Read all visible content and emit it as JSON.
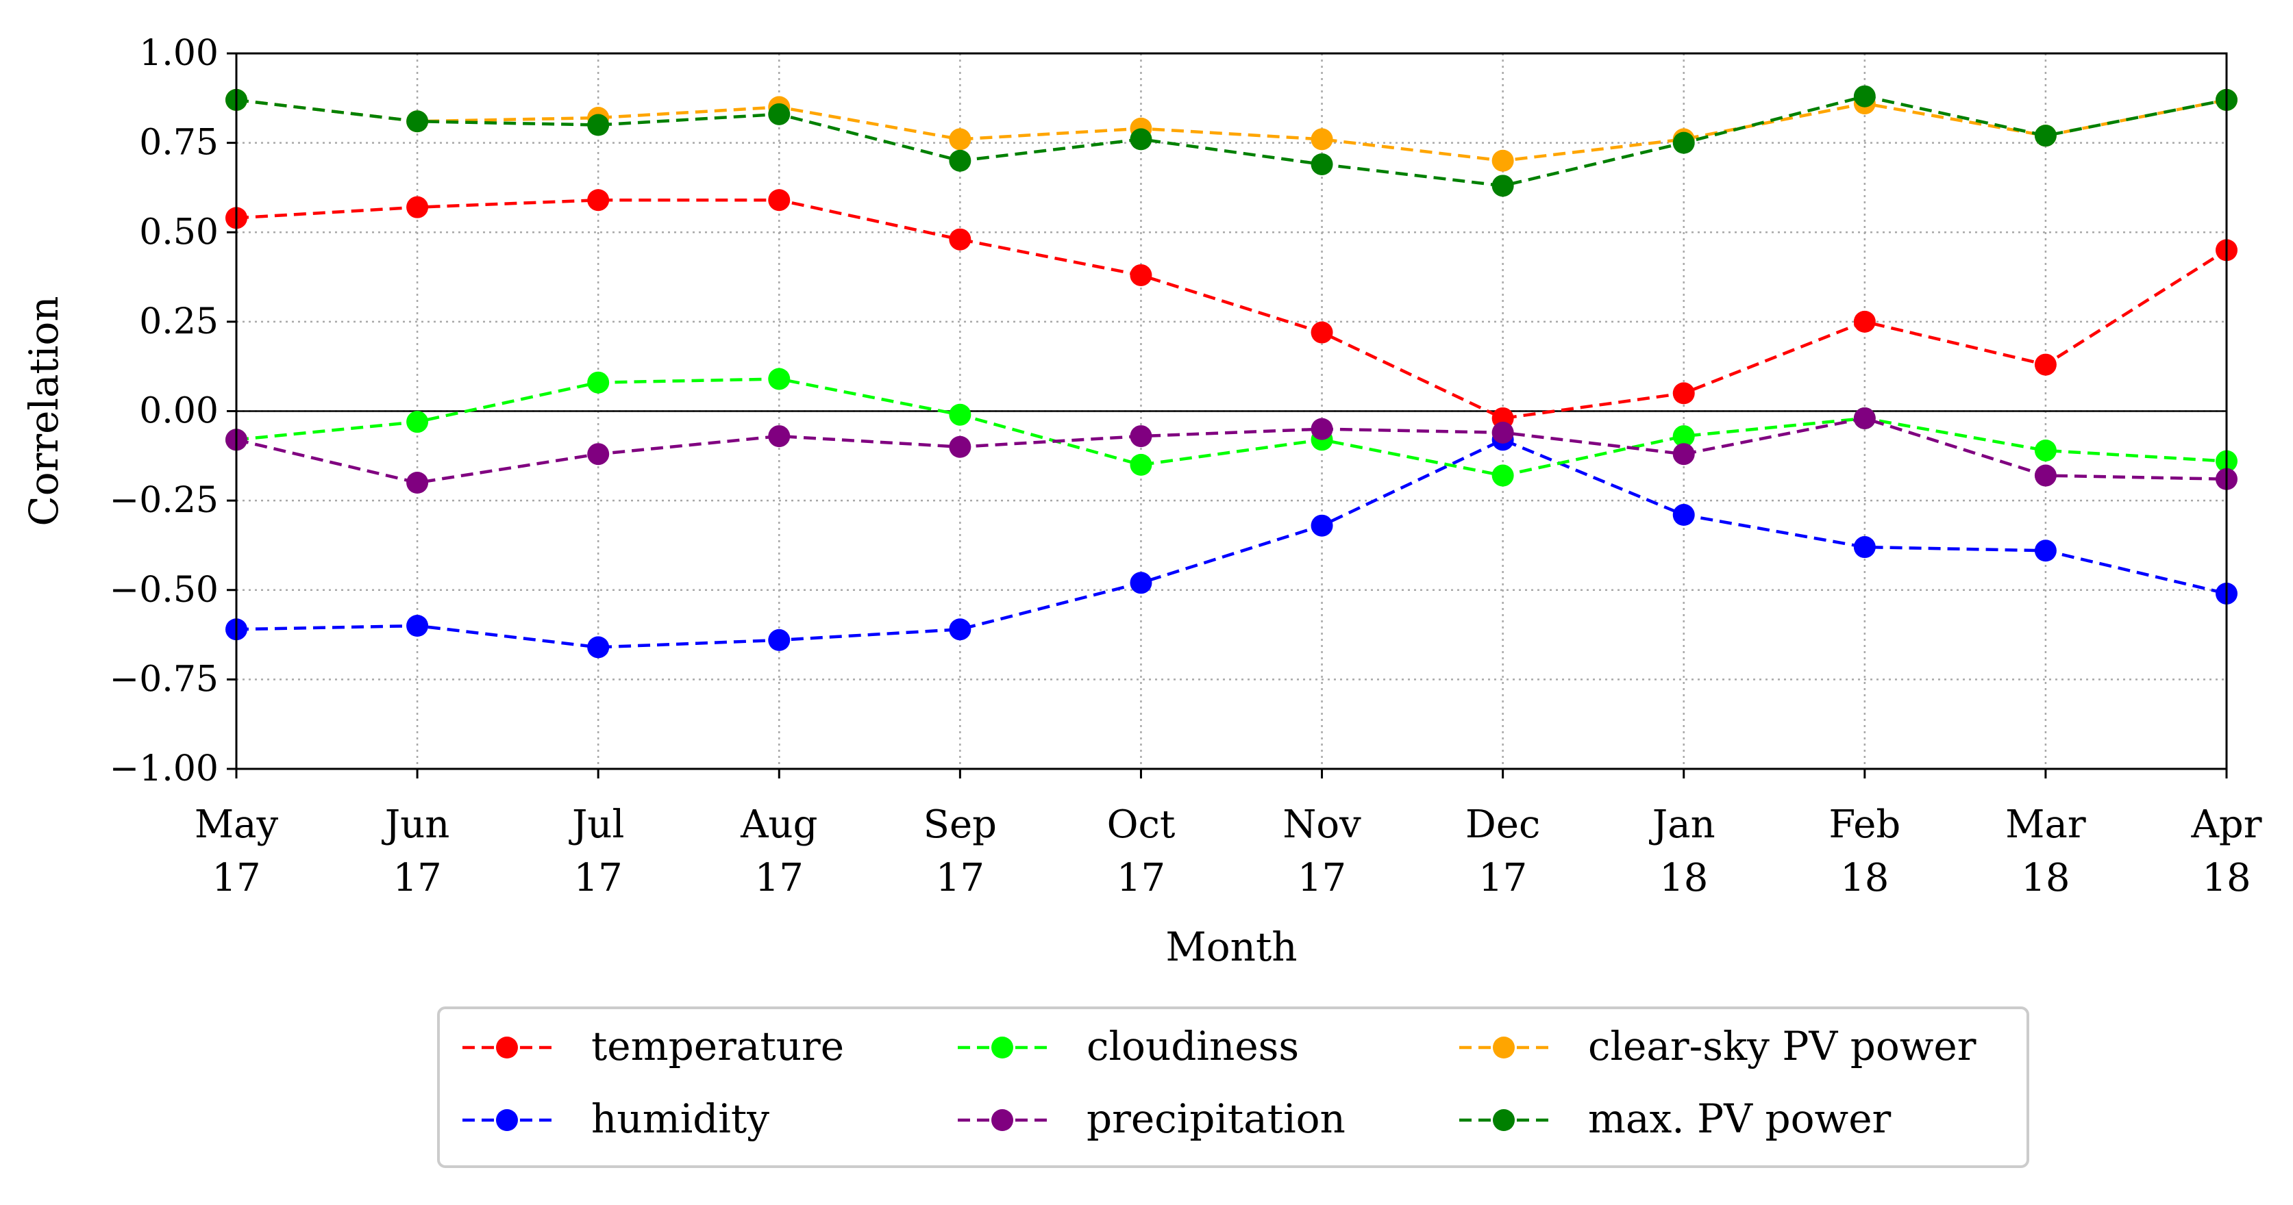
{
  "chart_data": {
    "type": "line",
    "title": "",
    "xlabel": "Month",
    "ylabel": "Correlation",
    "ylim": [
      -1.0,
      1.0
    ],
    "yticks": [
      "1.00",
      "0.75",
      "0.50",
      "0.25",
      "0.00",
      "−0.25",
      "−0.50",
      "−0.75",
      "−1.00"
    ],
    "ytick_values": [
      1.0,
      0.75,
      0.5,
      0.25,
      0.0,
      -0.25,
      -0.5,
      -0.75,
      -1.0
    ],
    "categories": [
      [
        "May",
        "17"
      ],
      [
        "Jun",
        "17"
      ],
      [
        "Jul",
        "17"
      ],
      [
        "Aug",
        "17"
      ],
      [
        "Sep",
        "17"
      ],
      [
        "Oct",
        "17"
      ],
      [
        "Nov",
        "17"
      ],
      [
        "Dec",
        "17"
      ],
      [
        "Jan",
        "18"
      ],
      [
        "Feb",
        "18"
      ],
      [
        "Mar",
        "18"
      ],
      [
        "Apr",
        "18"
      ]
    ],
    "grid": true,
    "zero_line": true,
    "legend_placement": "bottom-center",
    "series": [
      {
        "name": "temperature",
        "color": "#ff0000",
        "values": [
          0.54,
          0.57,
          0.59,
          0.59,
          0.48,
          0.38,
          0.22,
          -0.02,
          0.05,
          0.25,
          0.13,
          0.45
        ]
      },
      {
        "name": "humidity",
        "color": "#0000ff",
        "values": [
          -0.61,
          -0.6,
          -0.66,
          -0.64,
          -0.61,
          -0.48,
          -0.32,
          -0.08,
          -0.29,
          -0.38,
          -0.39,
          -0.51
        ]
      },
      {
        "name": "cloudiness",
        "color": "#00ff00",
        "values": [
          -0.08,
          -0.03,
          0.08,
          0.09,
          -0.01,
          -0.15,
          -0.08,
          -0.18,
          -0.07,
          -0.02,
          -0.11,
          -0.14
        ]
      },
      {
        "name": "precipitation",
        "color": "#800080",
        "values": [
          -0.08,
          -0.2,
          -0.12,
          -0.07,
          -0.1,
          -0.07,
          -0.05,
          -0.06,
          -0.12,
          -0.02,
          -0.18,
          -0.19
        ]
      },
      {
        "name": "clear-sky PV power",
        "color": "#ffa500",
        "values": [
          0.87,
          0.81,
          0.82,
          0.85,
          0.76,
          0.79,
          0.76,
          0.7,
          0.76,
          0.86,
          0.77,
          0.87
        ]
      },
      {
        "name": "max. PV power",
        "color": "#008000",
        "values": [
          0.87,
          0.81,
          0.8,
          0.83,
          0.7,
          0.76,
          0.69,
          0.63,
          0.75,
          0.88,
          0.77,
          0.87
        ]
      }
    ]
  }
}
